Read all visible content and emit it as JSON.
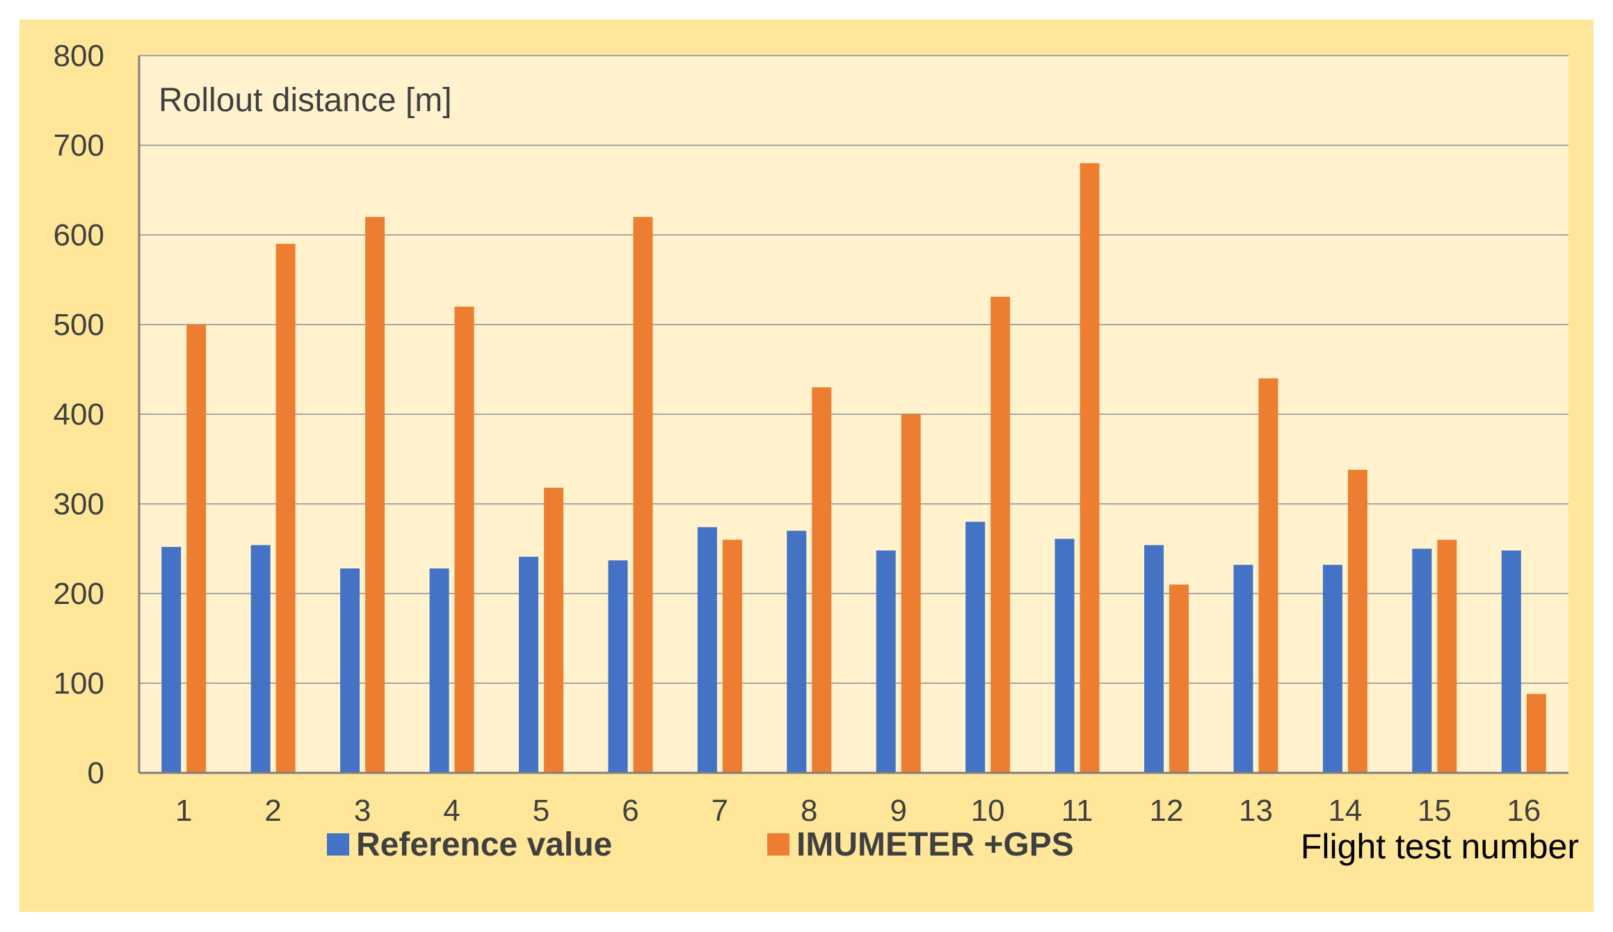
{
  "chart_data": {
    "type": "bar",
    "title": "Rollout distance [m]",
    "xlabel": "Flight test number",
    "ylabel": "",
    "ylim": [
      0,
      800
    ],
    "yticks": [
      0,
      100,
      200,
      300,
      400,
      500,
      600,
      700,
      800
    ],
    "grid": true,
    "legend_position": "bottom",
    "categories": [
      "1",
      "2",
      "3",
      "4",
      "5",
      "6",
      "7",
      "8",
      "9",
      "10",
      "11",
      "12",
      "13",
      "14",
      "15",
      "16"
    ],
    "series": [
      {
        "name": "Reference value",
        "color": "#4472c4",
        "values": [
          252,
          254,
          228,
          228,
          241,
          237,
          274,
          270,
          248,
          280,
          261,
          254,
          232,
          232,
          250,
          248
        ]
      },
      {
        "name": "IMUMETER +GPS",
        "color": "#ed7d31",
        "values": [
          500,
          590,
          620,
          520,
          318,
          620,
          260,
          430,
          400,
          531,
          680,
          210,
          440,
          338,
          260,
          88
        ]
      }
    ],
    "colors": {
      "frame_background": "#ffe699",
      "plot_background": "#fff2cc",
      "gridline": "#a6a6a6",
      "axis_line": "#7f7f7f"
    }
  }
}
